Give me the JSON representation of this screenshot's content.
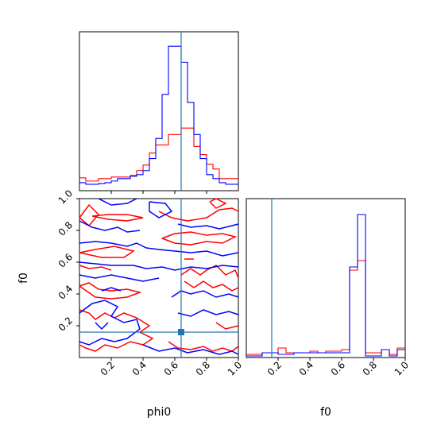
{
  "colors": {
    "series_a": "#ff0000",
    "series_b": "#0000ff",
    "truth": "#1f77b4",
    "frame": "#000000"
  },
  "chart_data": [
    {
      "type": "histogram",
      "panel": "top-left",
      "parameter": "phi0",
      "xlim": [
        0,
        1
      ],
      "bins": 25,
      "truth": 0.64,
      "series": [
        {
          "color": "#ff0000",
          "values": [
            16,
            12,
            12,
            15,
            15,
            17,
            17,
            17,
            19,
            25,
            32,
            47,
            57,
            57,
            70,
            70,
            78,
            78,
            55,
            45,
            33,
            27,
            15,
            15,
            15
          ]
        },
        {
          "color": "#0000ff",
          "values": [
            10,
            8,
            8,
            9,
            10,
            12,
            15,
            15,
            18,
            20,
            25,
            40,
            65,
            120,
            180,
            180,
            160,
            110,
            70,
            40,
            20,
            15,
            10,
            8,
            8
          ]
        }
      ],
      "xticks": [
        "0.2",
        "0.4",
        "0.6",
        "0.8"
      ],
      "tick_labels_visible": false
    },
    {
      "type": "contour",
      "panel": "bottom-left",
      "xlabel": "phi0",
      "ylabel": "f0",
      "xlim": [
        0,
        1
      ],
      "ylim": [
        0,
        1
      ],
      "truth": {
        "x": 0.64,
        "y": 0.16
      },
      "xticks": [
        "0.2",
        "0.4",
        "0.6",
        "0.8",
        "1.0"
      ],
      "yticks": [
        "0.2",
        "0.4",
        "0.6",
        "0.8",
        "1.0"
      ],
      "series": [
        {
          "color": "#ff0000",
          "contours": [
            [
              [
                0.0,
                0.88
              ],
              [
                0.06,
                0.96
              ],
              [
                0.12,
                0.9
              ],
              [
                0.06,
                0.83
              ],
              [
                0.0,
                0.88
              ]
            ],
            [
              [
                0.08,
                0.89
              ],
              [
                0.18,
                0.9
              ],
              [
                0.3,
                0.9
              ],
              [
                0.4,
                0.88
              ],
              [
                0.3,
                0.86
              ],
              [
                0.18,
                0.87
              ],
              [
                0.08,
                0.89
              ]
            ],
            [
              [
                0.5,
                0.92
              ],
              [
                0.58,
                0.88
              ],
              [
                0.68,
                0.86
              ],
              [
                0.8,
                0.88
              ],
              [
                0.88,
                0.93
              ],
              [
                0.96,
                0.94
              ],
              [
                1.0,
                0.92
              ]
            ],
            [
              [
                0.82,
                0.98
              ],
              [
                0.86,
                0.94
              ],
              [
                0.92,
                0.97
              ],
              [
                0.86,
                1.0
              ],
              [
                0.82,
                0.98
              ]
            ],
            [
              [
                0.52,
                0.75
              ],
              [
                0.6,
                0.78
              ],
              [
                0.7,
                0.79
              ],
              [
                0.8,
                0.77
              ],
              [
                0.9,
                0.78
              ],
              [
                0.98,
                0.76
              ],
              [
                0.9,
                0.72
              ],
              [
                0.8,
                0.73
              ],
              [
                0.7,
                0.71
              ],
              [
                0.6,
                0.72
              ],
              [
                0.52,
                0.75
              ]
            ],
            [
              [
                0.0,
                0.66
              ],
              [
                0.1,
                0.68
              ],
              [
                0.22,
                0.7
              ],
              [
                0.34,
                0.67
              ],
              [
                0.28,
                0.63
              ],
              [
                0.14,
                0.63
              ],
              [
                0.0,
                0.66
              ]
            ],
            [
              [
                0.66,
                0.62
              ],
              [
                0.72,
                0.62
              ]
            ],
            [
              [
                0.0,
                0.58
              ],
              [
                0.06,
                0.56
              ],
              [
                0.14,
                0.57
              ],
              [
                0.2,
                0.55
              ]
            ],
            [
              [
                0.64,
                0.52
              ],
              [
                0.7,
                0.56
              ],
              [
                0.76,
                0.52
              ],
              [
                0.8,
                0.55
              ],
              [
                0.86,
                0.58
              ],
              [
                0.92,
                0.52
              ],
              [
                0.98,
                0.55
              ],
              [
                1.0,
                0.5
              ]
            ],
            [
              [
                0.66,
                0.48
              ],
              [
                0.72,
                0.44
              ],
              [
                0.78,
                0.48
              ],
              [
                0.84,
                0.44
              ],
              [
                0.9,
                0.46
              ],
              [
                0.96,
                0.42
              ],
              [
                1.0,
                0.44
              ]
            ],
            [
              [
                0.0,
                0.45
              ],
              [
                0.06,
                0.47
              ],
              [
                0.12,
                0.43
              ],
              [
                0.2,
                0.42
              ],
              [
                0.3,
                0.43
              ],
              [
                0.38,
                0.41
              ],
              [
                0.3,
                0.38
              ],
              [
                0.2,
                0.37
              ],
              [
                0.1,
                0.38
              ],
              [
                0.0,
                0.45
              ]
            ],
            [
              [
                0.0,
                0.3
              ],
              [
                0.06,
                0.28
              ],
              [
                0.1,
                0.24
              ],
              [
                0.16,
                0.28
              ],
              [
                0.22,
                0.25
              ],
              [
                0.28,
                0.28
              ],
              [
                0.36,
                0.25
              ],
              [
                0.44,
                0.2
              ],
              [
                0.38,
                0.16
              ],
              [
                0.46,
                0.12
              ],
              [
                0.4,
                0.08
              ],
              [
                0.32,
                0.1
              ],
              [
                0.24,
                0.06
              ],
              [
                0.16,
                0.08
              ],
              [
                0.1,
                0.04
              ],
              [
                0.04,
                0.06
              ],
              [
                0.0,
                0.08
              ]
            ],
            [
              [
                0.56,
                0.1
              ],
              [
                0.62,
                0.06
              ],
              [
                0.7,
                0.05
              ],
              [
                0.78,
                0.07
              ],
              [
                0.84,
                0.04
              ],
              [
                0.9,
                0.06
              ],
              [
                0.96,
                0.04
              ],
              [
                1.0,
                0.07
              ]
            ],
            [
              [
                0.86,
                0.22
              ],
              [
                0.92,
                0.18
              ],
              [
                1.0,
                0.2
              ]
            ]
          ]
        },
        {
          "color": "#0000ff",
          "contours": [
            [
              [
                0.12,
                1.0
              ],
              [
                0.2,
                0.96
              ],
              [
                0.3,
                0.97
              ],
              [
                0.36,
                1.0
              ]
            ],
            [
              [
                0.44,
                0.98
              ],
              [
                0.54,
                0.97
              ],
              [
                0.58,
                0.92
              ],
              [
                0.5,
                0.88
              ],
              [
                0.44,
                0.92
              ],
              [
                0.44,
                0.98
              ]
            ],
            [
              [
                0.0,
                0.86
              ],
              [
                0.08,
                0.82
              ],
              [
                0.16,
                0.8
              ],
              [
                0.24,
                0.82
              ],
              [
                0.3,
                0.79
              ],
              [
                0.38,
                0.8
              ]
            ],
            [
              [
                0.62,
                0.84
              ],
              [
                0.7,
                0.82
              ],
              [
                0.8,
                0.83
              ],
              [
                0.88,
                0.81
              ],
              [
                0.96,
                0.83
              ],
              [
                1.0,
                0.84
              ]
            ],
            [
              [
                0.0,
                0.72
              ],
              [
                0.1,
                0.73
              ],
              [
                0.2,
                0.72
              ],
              [
                0.3,
                0.7
              ],
              [
                0.36,
                0.72
              ],
              [
                0.42,
                0.69
              ],
              [
                0.5,
                0.68
              ],
              [
                0.6,
                0.67
              ],
              [
                0.7,
                0.66
              ],
              [
                0.8,
                0.67
              ],
              [
                0.9,
                0.64
              ],
              [
                1.0,
                0.66
              ]
            ],
            [
              [
                0.0,
                0.6
              ],
              [
                0.1,
                0.59
              ],
              [
                0.2,
                0.58
              ],
              [
                0.34,
                0.58
              ],
              [
                0.42,
                0.56
              ],
              [
                0.52,
                0.57
              ],
              [
                0.6,
                0.55
              ],
              [
                0.7,
                0.57
              ],
              [
                0.8,
                0.56
              ],
              [
                0.9,
                0.58
              ],
              [
                1.0,
                0.57
              ]
            ],
            [
              [
                0.0,
                0.52
              ],
              [
                0.1,
                0.5
              ],
              [
                0.2,
                0.52
              ],
              [
                0.3,
                0.5
              ],
              [
                0.4,
                0.48
              ],
              [
                0.5,
                0.5
              ]
            ],
            [
              [
                0.14,
                0.42
              ],
              [
                0.2,
                0.44
              ],
              [
                0.26,
                0.42
              ]
            ],
            [
              [
                0.0,
                0.28
              ],
              [
                0.08,
                0.34
              ],
              [
                0.16,
                0.36
              ],
              [
                0.24,
                0.32
              ],
              [
                0.2,
                0.26
              ],
              [
                0.28,
                0.22
              ],
              [
                0.36,
                0.24
              ],
              [
                0.38,
                0.18
              ],
              [
                0.3,
                0.12
              ],
              [
                0.22,
                0.1
              ],
              [
                0.14,
                0.12
              ],
              [
                0.06,
                0.08
              ],
              [
                0.0,
                0.1
              ]
            ],
            [
              [
                0.1,
                0.22
              ],
              [
                0.14,
                0.18
              ],
              [
                0.18,
                0.22
              ]
            ],
            [
              [
                0.58,
                0.38
              ],
              [
                0.64,
                0.42
              ],
              [
                0.7,
                0.4
              ],
              [
                0.78,
                0.42
              ],
              [
                0.86,
                0.38
              ],
              [
                0.94,
                0.4
              ],
              [
                1.0,
                0.38
              ]
            ],
            [
              [
                0.62,
                0.28
              ],
              [
                0.7,
                0.26
              ],
              [
                0.78,
                0.3
              ],
              [
                0.86,
                0.27
              ],
              [
                0.94,
                0.29
              ],
              [
                1.0,
                0.27
              ]
            ],
            [
              [
                0.4,
                0.08
              ],
              [
                0.5,
                0.04
              ],
              [
                0.6,
                0.06
              ],
              [
                0.68,
                0.03
              ],
              [
                0.78,
                0.05
              ],
              [
                0.88,
                0.02
              ],
              [
                0.96,
                0.04
              ],
              [
                1.0,
                0.02
              ]
            ]
          ]
        }
      ]
    },
    {
      "type": "histogram",
      "panel": "bottom-right",
      "xlabel": "f0",
      "parameter": "f0",
      "xlim": [
        0,
        1
      ],
      "bins": 20,
      "truth": 0.16,
      "xticks": [
        "0.2",
        "0.4",
        "0.6",
        "0.8",
        "1.0"
      ],
      "series": [
        {
          "color": "#ff0000",
          "values": [
            2,
            2,
            3,
            3,
            6,
            3,
            3,
            3,
            4,
            3,
            4,
            4,
            5,
            55,
            61,
            3,
            3,
            5,
            2,
            6
          ]
        },
        {
          "color": "#0000ff",
          "values": [
            1,
            1,
            3,
            3,
            2,
            2,
            3,
            3,
            3,
            3,
            3,
            3,
            3,
            57,
            90,
            1,
            1,
            5,
            1,
            5
          ]
        }
      ]
    }
  ]
}
